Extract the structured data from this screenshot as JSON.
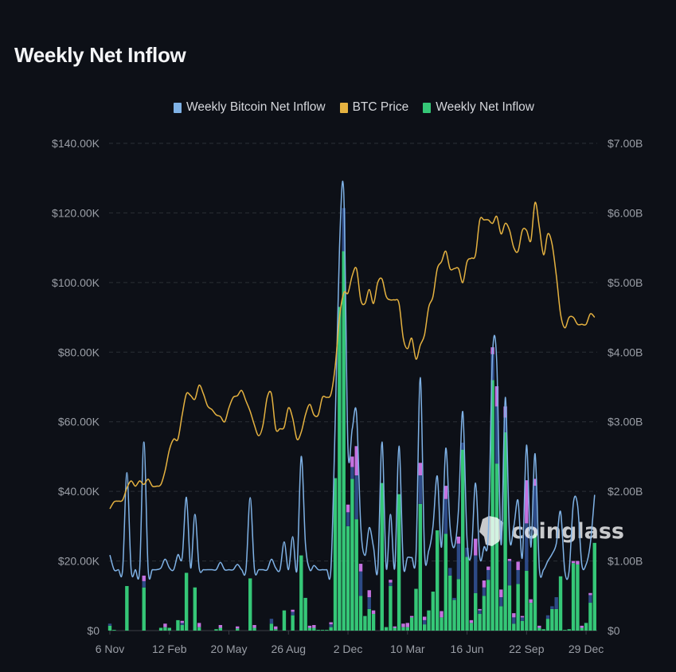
{
  "title": "Weekly Net Inflow",
  "watermark": "coinglass",
  "chart_data": {
    "type": "bar",
    "title": "Weekly Net Inflow",
    "legend_position": "top",
    "grid": true,
    "colors": {
      "bitcoin_line": "#7fb2e6",
      "price_line": "#e5b240",
      "net_inflow": "#35c777",
      "stack_2": "#2d4a86",
      "stack_3": "#c572e0"
    },
    "left_axis": {
      "ylim": [
        0,
        140000
      ],
      "ticks": [
        "$0",
        "$20.00K",
        "$40.00K",
        "$60.00K",
        "$80.00K",
        "$100.00K",
        "$120.00K",
        "$140.00K"
      ]
    },
    "right_axis": {
      "ylim": [
        0,
        7
      ],
      "unit": "B",
      "ticks": [
        "$0",
        "$1.00B",
        "$2.00B",
        "$3.00B",
        "$4.00B",
        "$5.00B",
        "$6.00B",
        "$7.00B"
      ]
    },
    "x_ticks": [
      {
        "label": "6 Nov",
        "date": "2023-11-06"
      },
      {
        "label": "12 Feb",
        "date": "2024-02-12"
      },
      {
        "label": "20 May",
        "date": "2024-05-20"
      },
      {
        "label": "26 Aug",
        "date": "2024-08-26"
      },
      {
        "label": "2 Dec",
        "date": "2024-12-02"
      },
      {
        "label": "10 Mar",
        "date": "2025-03-10"
      },
      {
        "label": "16 Jun",
        "date": "2025-06-16"
      },
      {
        "label": "22 Sep",
        "date": "2025-09-22"
      },
      {
        "label": "29 Dec",
        "date": "2025-12-29"
      }
    ],
    "x": [
      "2023-11-06",
      "2023-11-13",
      "2023-11-20",
      "2023-11-27",
      "2023-12-04",
      "2023-12-11",
      "2023-12-18",
      "2023-12-25",
      "2024-01-01",
      "2024-01-08",
      "2024-01-15",
      "2024-01-22",
      "2024-01-29",
      "2024-02-05",
      "2024-02-12",
      "2024-02-19",
      "2024-02-26",
      "2024-03-04",
      "2024-03-11",
      "2024-03-18",
      "2024-03-25",
      "2024-04-01",
      "2024-04-08",
      "2024-04-15",
      "2024-04-22",
      "2024-04-29",
      "2024-05-06",
      "2024-05-13",
      "2024-05-20",
      "2024-05-27",
      "2024-06-03",
      "2024-06-10",
      "2024-06-17",
      "2024-06-24",
      "2024-07-01",
      "2024-07-08",
      "2024-07-15",
      "2024-07-22",
      "2024-07-29",
      "2024-08-05",
      "2024-08-12",
      "2024-08-19",
      "2024-08-26",
      "2024-09-02",
      "2024-09-09",
      "2024-09-16",
      "2024-09-23",
      "2024-09-30",
      "2024-10-07",
      "2024-10-14",
      "2024-10-21",
      "2024-10-28",
      "2024-11-04",
      "2024-11-11",
      "2024-11-18",
      "2024-11-25",
      "2024-12-02",
      "2024-12-09",
      "2024-12-16",
      "2024-12-23",
      "2024-12-30",
      "2025-01-06",
      "2025-01-13",
      "2025-01-20",
      "2025-01-27",
      "2025-02-03",
      "2025-02-10",
      "2025-02-17",
      "2025-02-24",
      "2025-03-03",
      "2025-03-10",
      "2025-03-17",
      "2025-03-24",
      "2025-03-31",
      "2025-04-07",
      "2025-04-14",
      "2025-04-21",
      "2025-04-28",
      "2025-05-05",
      "2025-05-12",
      "2025-05-19",
      "2025-05-26",
      "2025-06-02",
      "2025-06-09",
      "2025-06-16",
      "2025-06-23",
      "2025-06-30",
      "2025-07-07",
      "2025-07-14",
      "2025-07-21",
      "2025-07-28",
      "2025-08-04",
      "2025-08-11",
      "2025-08-18",
      "2025-08-25",
      "2025-09-01",
      "2025-09-08",
      "2025-09-15",
      "2025-09-22",
      "2025-09-29",
      "2025-10-06",
      "2025-10-13",
      "2025-10-20",
      "2025-10-27",
      "2025-11-03",
      "2025-11-10",
      "2025-11-17",
      "2025-11-24",
      "2025-12-01",
      "2025-12-08",
      "2025-12-15",
      "2025-12-22",
      "2025-12-29",
      "2026-01-05",
      "2026-01-12"
    ],
    "series": [
      {
        "name": "Weekly Bitcoin Net Inflow",
        "type": "line",
        "axis": "left",
        "color": "#7fb2e6",
        "values": [
          21700,
          17500,
          17500,
          17500,
          45400,
          17500,
          17500,
          17500,
          54200,
          17500,
          17500,
          17500,
          18000,
          20500,
          18000,
          17500,
          21800,
          21000,
          38300,
          18000,
          33400,
          18000,
          17500,
          17500,
          17500,
          17500,
          19600,
          17500,
          17500,
          17500,
          19000,
          17500,
          17500,
          38200,
          17500,
          17500,
          17500,
          17500,
          20500,
          18000,
          17500,
          25500,
          17500,
          27000,
          17500,
          50000,
          25000,
          17500,
          18700,
          17500,
          17500,
          17500,
          18000,
          60000,
          110000,
          126000,
          52400,
          58000,
          62500,
          30000,
          21600,
          29600,
          24000,
          17500,
          54200,
          18000,
          33400,
          18000,
          53000,
          19000,
          21000,
          21000,
          22000,
          72700,
          22600,
          23000,
          30000,
          44400,
          24000,
          52400,
          30000,
          24000,
          35000,
          62900,
          26000,
          22000,
          42400,
          21000,
          24000,
          28000,
          79500,
          77000,
          24700,
          67000,
          27000,
          30000,
          37400,
          21000,
          53300,
          24000,
          50800,
          18000,
          17500,
          20000,
          22000,
          25000,
          34200,
          17000,
          17000,
          36600,
          36000,
          19000,
          19000,
          25000,
          39000
        ]
      },
      {
        "name": "BTC Price",
        "type": "line",
        "axis": "left",
        "color": "#e5b240",
        "values": [
          35000,
          37000,
          37200,
          37500,
          41000,
          43000,
          41500,
          43000,
          42000,
          43500,
          41500,
          41500,
          42000,
          46000,
          52000,
          55000,
          55000,
          62000,
          68000,
          67500,
          66500,
          70500,
          68000,
          64500,
          63500,
          62000,
          61500,
          60000,
          64000,
          67000,
          67500,
          69000,
          66000,
          63000,
          59000,
          56000,
          59000,
          67000,
          68000,
          58000,
          58000,
          58500,
          64000,
          61000,
          55000,
          57000,
          62000,
          65000,
          62000,
          62000,
          67000,
          67000,
          68000,
          76000,
          90000,
          97000,
          97000,
          102000,
          104000,
          95000,
          94000,
          98000,
          94000,
          100000,
          101000,
          96000,
          95000,
          95000,
          94000,
          84000,
          81000,
          84000,
          78000,
          82000,
          85000,
          93000,
          96000,
          104000,
          106000,
          109000,
          104000,
          104000,
          104000,
          100000,
          106000,
          107000,
          108000,
          118000,
          118000,
          118000,
          117000,
          119000,
          114000,
          117000,
          115000,
          110000,
          109000,
          115000,
          115000,
          112000,
          123000,
          116000,
          108000,
          114000,
          111000,
          102000,
          91000,
          87000,
          90000,
          90000,
          88000,
          88000,
          88000,
          91000,
          90000
        ]
      },
      {
        "name": "Weekly Net Inflow",
        "type": "bar",
        "axis": "right",
        "unit": "B",
        "color": "#35c777",
        "values": [
          0.07,
          0.01,
          0,
          0,
          0.64,
          0,
          0,
          0,
          0.62,
          0,
          0,
          0,
          0.04,
          0.05,
          0.04,
          0,
          0.15,
          0.08,
          0.83,
          0,
          0.62,
          0.05,
          0,
          0,
          0,
          0.02,
          0.04,
          0,
          0,
          0,
          0.03,
          0,
          0,
          0.75,
          0.04,
          0,
          0,
          0,
          0.1,
          0.02,
          0,
          0.29,
          0,
          0.22,
          0,
          1.08,
          0.47,
          0.04,
          0.04,
          0.01,
          0.01,
          0.01,
          0.05,
          2.19,
          4.65,
          5.45,
          1.5,
          2.18,
          1.6,
          0.5,
          0.21,
          0.31,
          0.24,
          0,
          2.12,
          0.05,
          0.64,
          0.04,
          1.96,
          0.05,
          0.05,
          0.19,
          0.6,
          1.82,
          0.09,
          0.29,
          0.56,
          1.44,
          0.19,
          1.39,
          0.79,
          0.44,
          0.74,
          2.6,
          1.06,
          0.11,
          0.54,
          0.24,
          0.5,
          0.73,
          3.6,
          2.4,
          0.35,
          2.85,
          0.65,
          0.1,
          0.67,
          0.14,
          0.86,
          0.4,
          1.39,
          0.04,
          0.02,
          0.17,
          0.31,
          0.31,
          0.78,
          0.01,
          0.02,
          0.97,
          0.95,
          0.04,
          0.11,
          0.4,
          1.26
        ]
      },
      {
        "type": "bar",
        "axis": "right",
        "unit": "B",
        "stacked": true,
        "color": "#2d4a86",
        "values": [
          0.03,
          0,
          0,
          0,
          0,
          0,
          0,
          0,
          0.09,
          0,
          0,
          0,
          0,
          0,
          0,
          0,
          0,
          0.03,
          0,
          0,
          0,
          0,
          0,
          0,
          0,
          0,
          0,
          0,
          0,
          0,
          0,
          0,
          0,
          0,
          0,
          0,
          0,
          0,
          0.07,
          0,
          0,
          0,
          0,
          0.05,
          0,
          0,
          0,
          0,
          0,
          0,
          0,
          0,
          0.04,
          0,
          0,
          0.62,
          0.2,
          0.17,
          0.63,
          0.35,
          0,
          0.17,
          0,
          0,
          0,
          0,
          0.05,
          0,
          0,
          0,
          0,
          0,
          0,
          0.41,
          0.06,
          0,
          0,
          0,
          0,
          0.5,
          0.11,
          0.03,
          0.51,
          0.1,
          0.13,
          0,
          0.54,
          0.05,
          0.12,
          0.14,
          0.37,
          0.82,
          0.13,
          0.21,
          0.35,
          0.09,
          0.2,
          0.05,
          0.68,
          0,
          0.69,
          0,
          0,
          0.05,
          0.04,
          0.17,
          0,
          0,
          0,
          0,
          0,
          0,
          0,
          0.11,
          0
        ]
      },
      {
        "type": "bar",
        "axis": "right",
        "unit": "B",
        "stacked": true,
        "color": "#c572e0",
        "values": [
          0,
          0,
          0,
          0,
          0,
          0,
          0,
          0,
          0.08,
          0,
          0,
          0,
          0,
          0.05,
          0,
          0,
          0,
          0.03,
          0,
          0,
          0,
          0.06,
          0,
          0,
          0,
          0,
          0.04,
          0,
          0,
          0,
          0.03,
          0,
          0,
          0,
          0.04,
          0,
          0,
          0,
          0,
          0.04,
          0,
          0,
          0,
          0.03,
          0,
          0,
          0,
          0.03,
          0.04,
          0,
          0,
          0,
          0.03,
          0,
          0,
          0,
          0.11,
          0.15,
          0.42,
          0.11,
          0,
          0.1,
          0.05,
          0,
          0,
          0,
          0.04,
          0.02,
          0,
          0.05,
          0.06,
          0.02,
          0,
          0.18,
          0.05,
          0,
          0,
          0,
          0.09,
          0.19,
          0,
          0,
          0.1,
          0,
          0,
          0.04,
          0.24,
          0.02,
          0.1,
          0.05,
          0.1,
          0.29,
          0.11,
          0.16,
          0.03,
          0.06,
          0.12,
          0.02,
          0.62,
          0.05,
          0.1,
          0.03,
          0,
          0,
          0,
          0,
          0,
          0,
          0,
          0.03,
          0.05,
          0.03,
          0,
          0.03,
          0
        ]
      }
    ]
  },
  "legend": [
    {
      "label": "Weekly Bitcoin Net Inflow",
      "color": "#7fb2e6"
    },
    {
      "label": "BTC Price",
      "color": "#e5b240"
    },
    {
      "label": "Weekly Net Inflow",
      "color": "#35c777"
    }
  ]
}
